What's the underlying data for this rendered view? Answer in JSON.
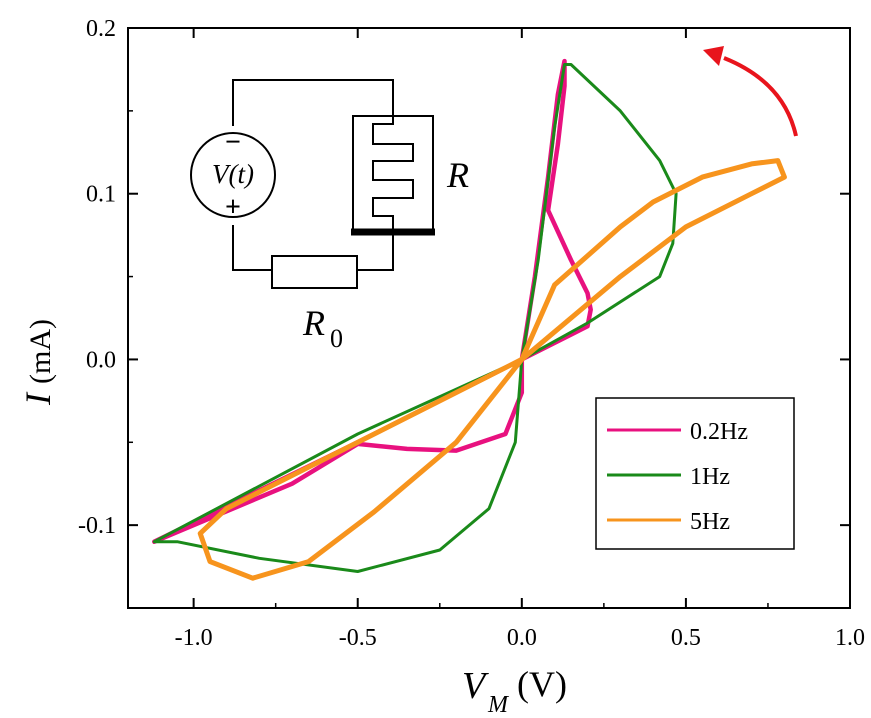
{
  "chart_data": {
    "type": "line",
    "title": "",
    "xlabel": {
      "symbol": "V",
      "subscript": "M",
      "unit": "(V)"
    },
    "ylabel": {
      "symbol": "I",
      "unit": "(mA)"
    },
    "xlim": [
      -1.2,
      1.0
    ],
    "ylim": [
      -0.15,
      0.2
    ],
    "xticks": [
      {
        "value": -1.0,
        "label": "-1.0"
      },
      {
        "value": -0.5,
        "label": "-0.5"
      },
      {
        "value": 0.0,
        "label": "0.0"
      },
      {
        "value": 0.5,
        "label": "0.5"
      },
      {
        "value": 1.0,
        "label": "1.0"
      }
    ],
    "yticks": [
      {
        "value": -0.1,
        "label": "-0.1"
      },
      {
        "value": 0.0,
        "label": "0.0"
      },
      {
        "value": 0.1,
        "label": "0.1"
      },
      {
        "value": 0.2,
        "label": "0.2"
      }
    ],
    "grid": false,
    "legend": {
      "position": "bottom-right"
    },
    "series": [
      {
        "name": "0.2Hz",
        "color": "#e8117f",
        "points": [
          [
            0.0,
            0.0
          ],
          [
            0.04,
            0.05
          ],
          [
            0.08,
            0.11
          ],
          [
            0.11,
            0.16
          ],
          [
            0.13,
            0.18
          ],
          [
            0.13,
            0.165
          ],
          [
            0.11,
            0.13
          ],
          [
            0.08,
            0.09
          ],
          [
            0.15,
            0.06
          ],
          [
            0.2,
            0.04
          ],
          [
            0.21,
            0.03
          ],
          [
            0.2,
            0.02
          ],
          [
            0.15,
            0.015
          ],
          [
            0.05,
            0.005
          ],
          [
            0.0,
            0.0
          ],
          [
            -0.5,
            -0.05
          ],
          [
            -1.12,
            -0.11
          ],
          [
            -0.7,
            -0.075
          ],
          [
            -0.5,
            -0.051
          ],
          [
            -0.35,
            -0.054
          ],
          [
            -0.2,
            -0.055
          ],
          [
            -0.05,
            -0.045
          ],
          [
            0.0,
            -0.02
          ],
          [
            0.0,
            0.0
          ]
        ]
      },
      {
        "name": "1Hz",
        "color": "#1a8a1a",
        "points": [
          [
            0.0,
            0.0
          ],
          [
            0.05,
            0.06
          ],
          [
            0.1,
            0.14
          ],
          [
            0.13,
            0.178
          ],
          [
            0.15,
            0.178
          ],
          [
            0.3,
            0.15
          ],
          [
            0.42,
            0.12
          ],
          [
            0.47,
            0.1
          ],
          [
            0.46,
            0.07
          ],
          [
            0.42,
            0.05
          ],
          [
            0.2,
            0.022
          ],
          [
            0.0,
            0.0
          ],
          [
            -0.5,
            -0.045
          ],
          [
            -1.12,
            -0.11
          ],
          [
            -1.05,
            -0.11
          ],
          [
            -0.8,
            -0.12
          ],
          [
            -0.5,
            -0.128
          ],
          [
            -0.25,
            -0.115
          ],
          [
            -0.1,
            -0.09
          ],
          [
            -0.02,
            -0.05
          ],
          [
            0.0,
            0.0
          ]
        ]
      },
      {
        "name": "5Hz",
        "color": "#f7941d",
        "points": [
          [
            0.0,
            0.0
          ],
          [
            0.3,
            0.05
          ],
          [
            0.5,
            0.08
          ],
          [
            0.7,
            0.1
          ],
          [
            0.8,
            0.11
          ],
          [
            0.78,
            0.12
          ],
          [
            0.7,
            0.118
          ],
          [
            0.55,
            0.11
          ],
          [
            0.4,
            0.095
          ],
          [
            0.3,
            0.08
          ],
          [
            0.1,
            0.045
          ],
          [
            0.0,
            0.0
          ],
          [
            -0.2,
            -0.05
          ],
          [
            -0.45,
            -0.092
          ],
          [
            -0.65,
            -0.122
          ],
          [
            -0.82,
            -0.132
          ],
          [
            -0.95,
            -0.122
          ],
          [
            -0.98,
            -0.105
          ],
          [
            -0.9,
            -0.09
          ],
          [
            -0.6,
            -0.06
          ],
          [
            -0.3,
            -0.03
          ],
          [
            0.0,
            0.0
          ]
        ]
      }
    ],
    "circuit_inset": {
      "source_label": "V(t)",
      "source_minus": "−",
      "source_plus": "+",
      "device_label": "R",
      "resistor_label": "R",
      "resistor_subscript": "0"
    },
    "arrow_annotation": {
      "color": "#e8141c",
      "direction": "counter-clockwise"
    }
  }
}
